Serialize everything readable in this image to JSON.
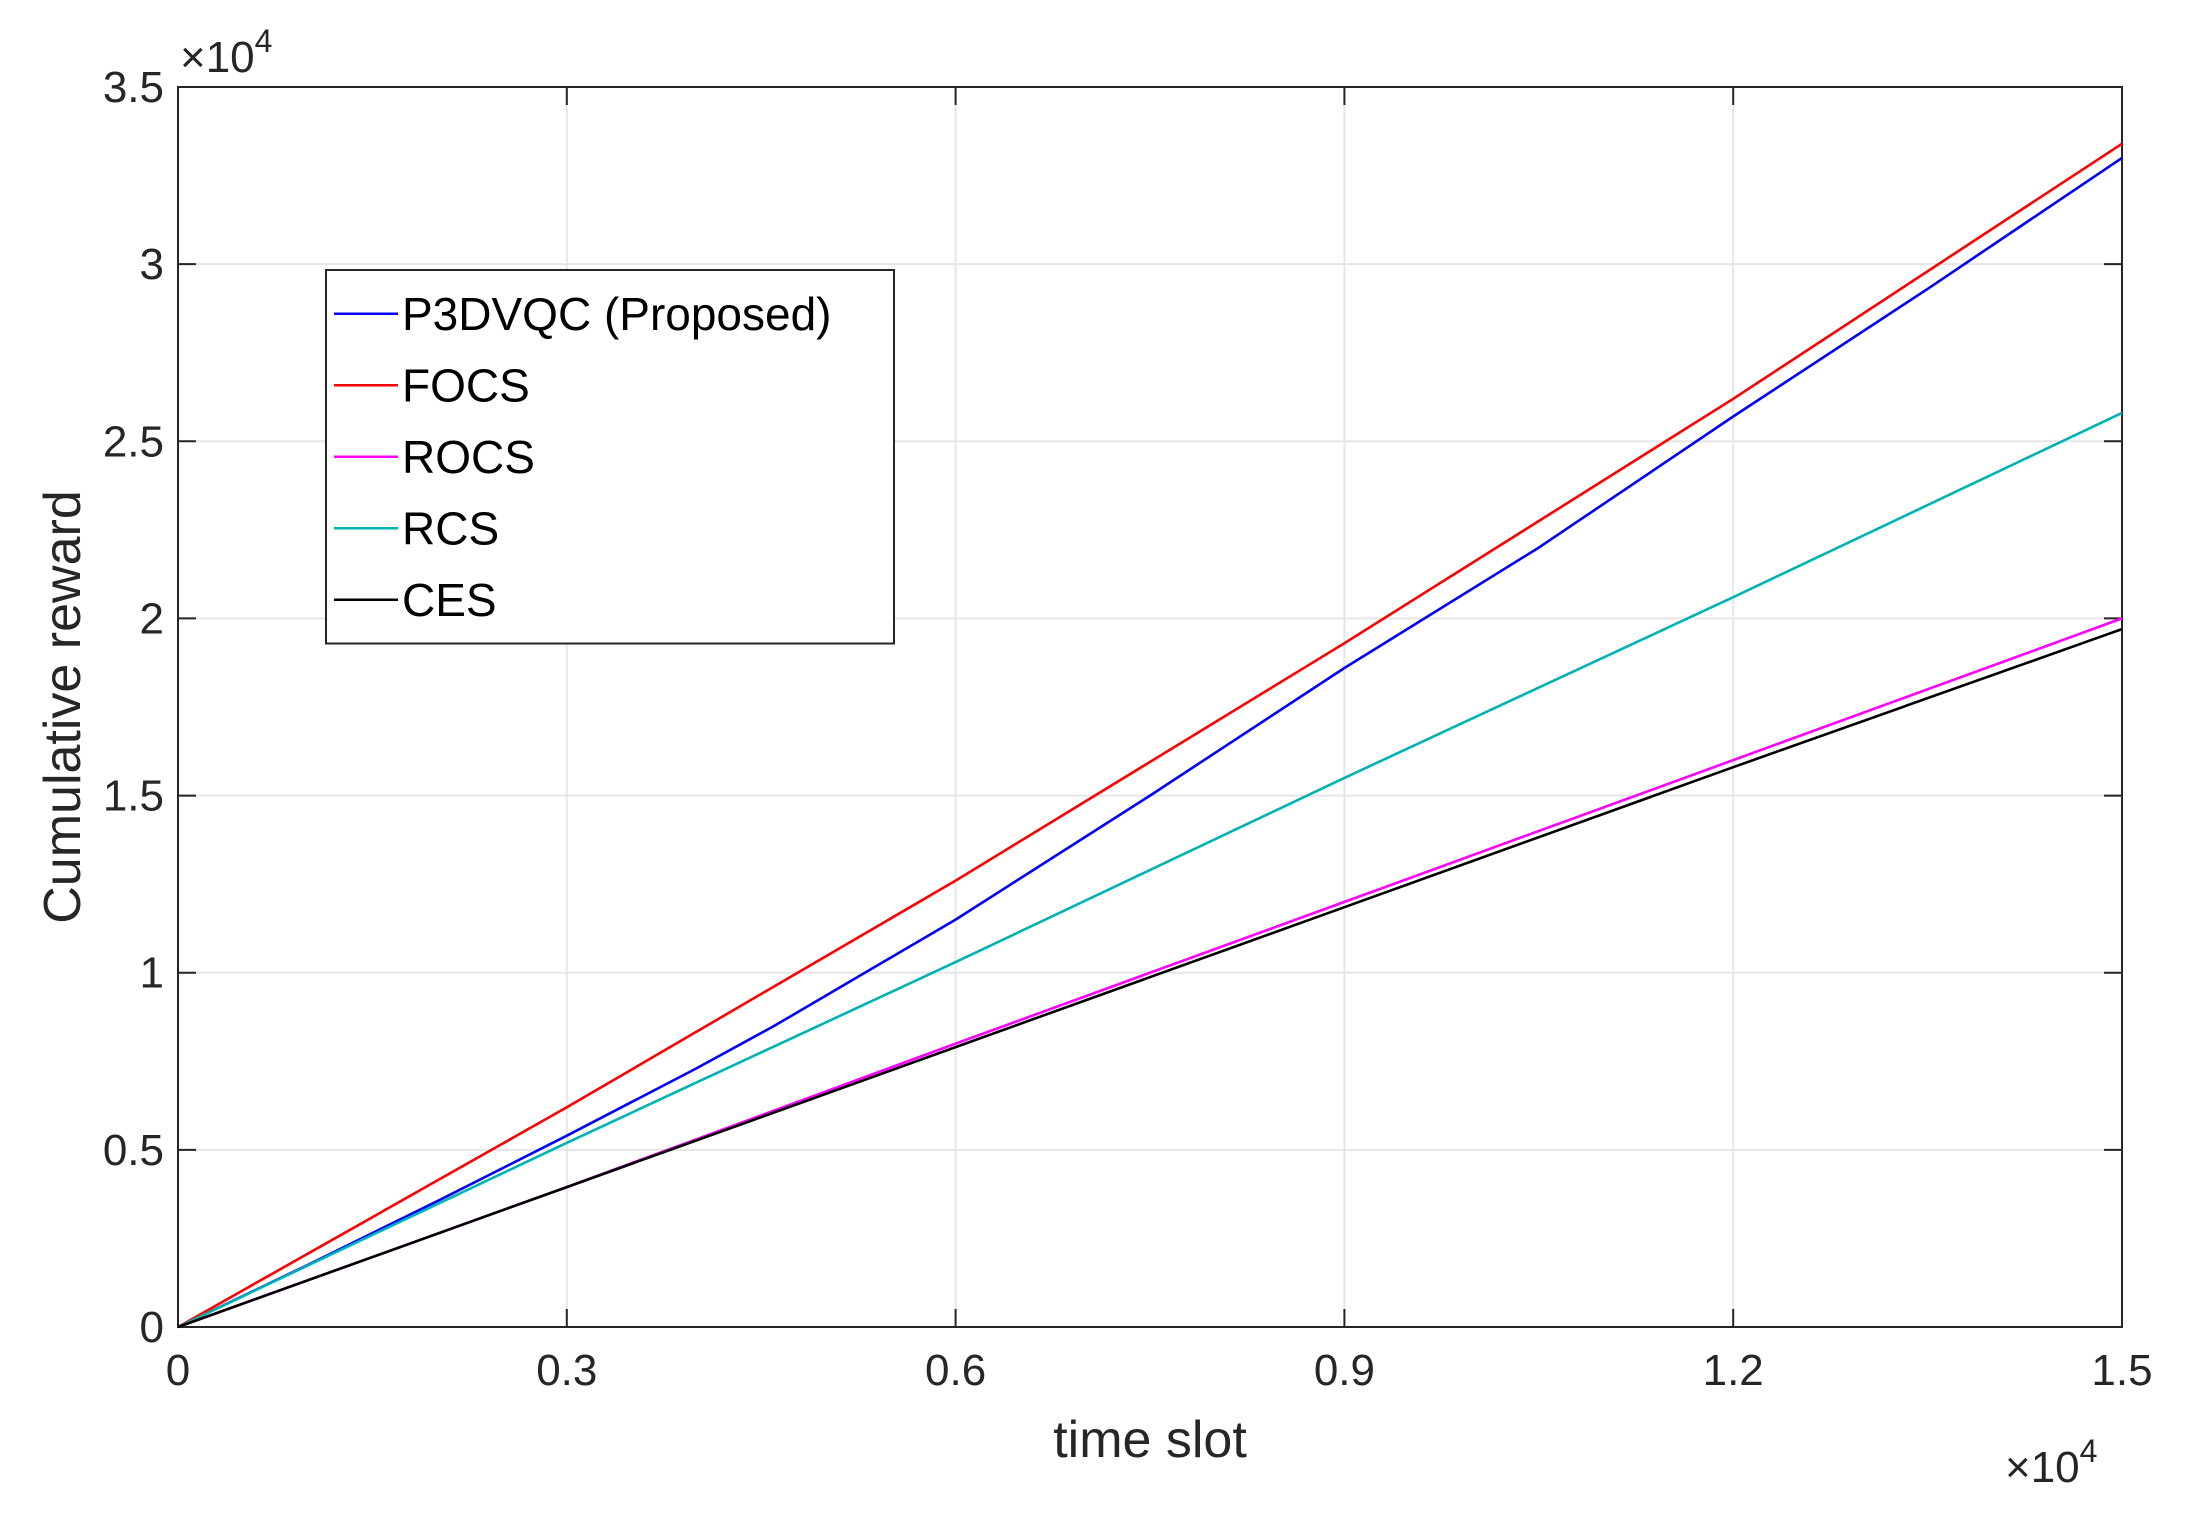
{
  "chart_data": {
    "type": "line",
    "title": "",
    "xlabel": "time slot",
    "ylabel": "Cumulative reward",
    "x_exponent_label": "×10",
    "x_exponent_power": "4",
    "y_exponent_label": "×10",
    "y_exponent_power": "4",
    "xlim": [
      0,
      1.5
    ],
    "ylim": [
      0,
      3.5
    ],
    "x_ticks": [
      0,
      0.3,
      0.6,
      0.9,
      1.2,
      1.5
    ],
    "x_tick_labels": [
      "0",
      "0.3",
      "0.6",
      "0.9",
      "1.2",
      "1.5"
    ],
    "y_ticks": [
      0,
      0.5,
      1,
      1.5,
      2,
      2.5,
      3,
      3.5
    ],
    "y_tick_labels": [
      "0",
      "0.5",
      "1",
      "1.5",
      "2",
      "2.5",
      "3",
      "3.5"
    ],
    "grid": true,
    "legend_position": "upper-left",
    "series": [
      {
        "name": "P3DVQC (Proposed)",
        "color": "#0000ff",
        "x": [
          0,
          0.1,
          0.2,
          0.3,
          0.4,
          0.46,
          0.6,
          0.75,
          0.9,
          1.05,
          1.2,
          1.35,
          1.5
        ],
        "y": [
          0,
          0.175,
          0.355,
          0.54,
          0.73,
          0.85,
          1.15,
          1.5,
          1.86,
          2.2,
          2.57,
          2.93,
          3.3
        ]
      },
      {
        "name": "FOCS",
        "color": "#ff0000",
        "x": [
          0,
          0.3,
          0.6,
          0.9,
          1.2,
          1.5
        ],
        "y": [
          0,
          0.62,
          1.26,
          1.93,
          2.62,
          3.34
        ]
      },
      {
        "name": "ROCS",
        "color": "#ff00ff",
        "x": [
          0,
          0.3,
          0.6,
          0.9,
          1.2,
          1.5
        ],
        "y": [
          0,
          0.395,
          0.8,
          1.2,
          1.6,
          2.0
        ]
      },
      {
        "name": "RCS",
        "color": "#00b3b3",
        "x": [
          0,
          0.3,
          0.6,
          0.9,
          1.2,
          1.5
        ],
        "y": [
          0,
          0.52,
          1.03,
          1.55,
          2.06,
          2.58
        ]
      },
      {
        "name": "CES",
        "color": "#000000",
        "x": [
          0,
          0.3,
          0.6,
          0.9,
          1.2,
          1.5
        ],
        "y": [
          0,
          0.395,
          0.79,
          1.185,
          1.58,
          1.97
        ]
      }
    ]
  }
}
